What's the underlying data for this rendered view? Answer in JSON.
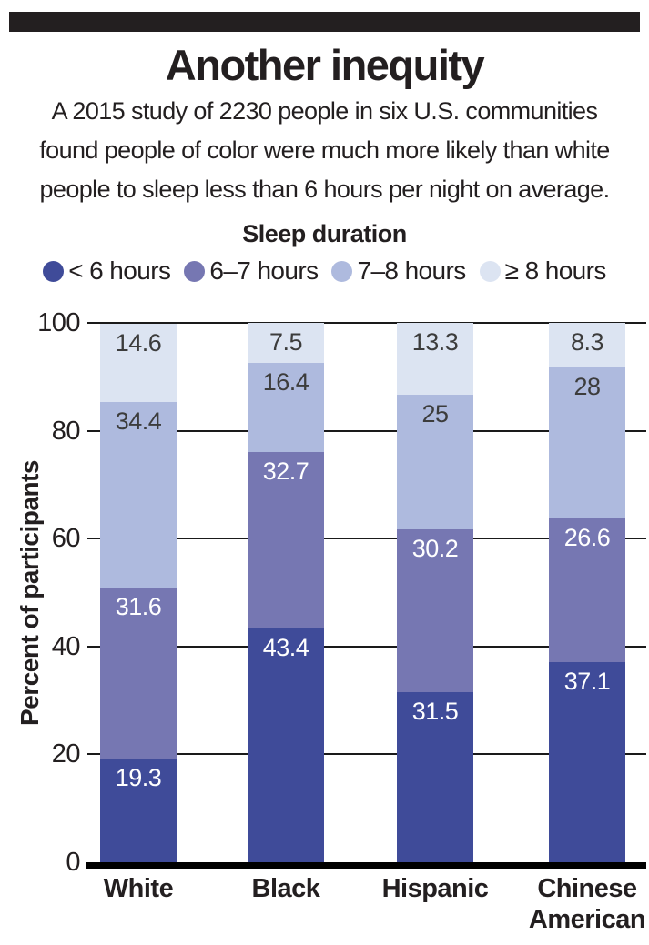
{
  "header": {
    "title": "Another inequity",
    "subtitle_lines": [
      "A 2015 study of 2230 people in six U.S. communities",
      "found people of color were much more likely than white",
      "people to sleep less than 6 hours per night on average."
    ]
  },
  "legend": {
    "title": "Sleep duration",
    "items": [
      {
        "label": "< 6 hours",
        "color": "#3f4b99"
      },
      {
        "label": "6–7 hours",
        "color": "#7677b2"
      },
      {
        "label": "7–8 hours",
        "color": "#aebade"
      },
      {
        "label": "≥ 8 hours",
        "color": "#dce4f2"
      }
    ]
  },
  "chart_data": {
    "type": "bar",
    "stacked": true,
    "categories": [
      "White",
      "Black",
      "Hispanic",
      "Chinese American"
    ],
    "series": [
      {
        "name": "< 6 hours",
        "color": "#3f4b99",
        "label_color": "#ffffff",
        "values": [
          19.3,
          43.4,
          31.5,
          37.1
        ],
        "labels": [
          "19.3",
          "43.4",
          "31.5",
          "37.1"
        ]
      },
      {
        "name": "6–7 hours",
        "color": "#7677b2",
        "label_color": "#ffffff",
        "values": [
          31.6,
          32.7,
          30.2,
          26.6
        ],
        "labels": [
          "31.6",
          "32.7",
          "30.2",
          "26.6"
        ]
      },
      {
        "name": "7–8 hours",
        "color": "#aebade",
        "label_color": "#3c3c3c",
        "values": [
          34.4,
          16.4,
          25,
          28
        ],
        "labels": [
          "34.4",
          "16.4",
          "25",
          "28"
        ]
      },
      {
        "name": "≥ 8 hours",
        "color": "#dce4f2",
        "label_color": "#3c3c3c",
        "values": [
          14.6,
          7.5,
          13.3,
          8.3
        ],
        "labels": [
          "14.6",
          "7.5",
          "13.3",
          "8.3"
        ]
      }
    ],
    "ylabel": "Percent of participants",
    "yticks": [
      0,
      20,
      40,
      60,
      80,
      100
    ],
    "ylim": [
      0,
      100
    ],
    "grid": true,
    "legend_position": "top"
  },
  "colors": {
    "rule": "#231f20",
    "text": "#231f20",
    "gridline": "#1a1a1a",
    "baseline": "#000000"
  }
}
